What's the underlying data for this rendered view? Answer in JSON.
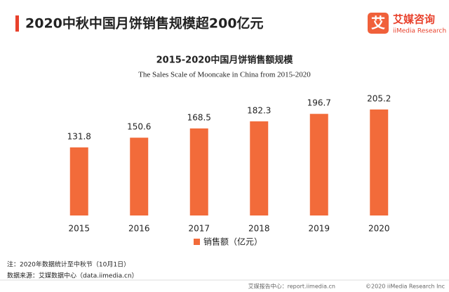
{
  "header": {
    "title": "2020中秋中国月饼销售规模超200亿元",
    "logo_mark": "艾",
    "logo_name": "艾媒咨询",
    "logo_sub": "iiMedia Research"
  },
  "chart_data": {
    "type": "bar",
    "title": "2015-2020中国月饼销售额规模",
    "subtitle": "The  Sales Scale of Mooncake in China from 2015-2020",
    "categories": [
      "2015",
      "2016",
      "2017",
      "2018",
      "2019",
      "2020"
    ],
    "series": [
      {
        "name": "销售额（亿元）",
        "color": "#f26b3a",
        "values": [
          131.8,
          150.6,
          168.5,
          182.3,
          196.7,
          205.2
        ]
      }
    ],
    "legend": "bottom"
  },
  "notes": {
    "note": "注：2020年数据统计至中秋节（10月1日）",
    "source": "数据来源：艾媒数据中心（data.iimedia.cn）"
  },
  "footer": {
    "site": "艾媒报告中心：report.iimedia.cn",
    "copyright": "©2020 iiMedia Research Inc"
  }
}
